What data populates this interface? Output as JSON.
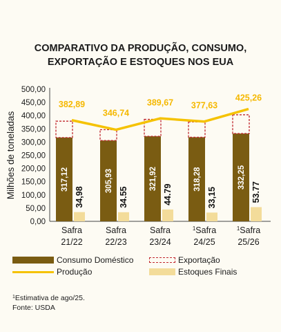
{
  "chart_data": {
    "type": "bar",
    "title_lines": [
      "COMPARATIVO DA PRODUÇÃO, CONSUMO,",
      "EXPORTAÇÃO E ESTOQUES NOS EUA"
    ],
    "ylabel": "Milhões de toneladas",
    "ylim": [
      0,
      500
    ],
    "yticks": [
      "0,00",
      "50,00",
      "100,00",
      "150,00",
      "200,00",
      "250,00",
      "300,00",
      "350,00",
      "400,00",
      "450,00",
      "500,00"
    ],
    "categories": [
      {
        "sup": "",
        "line1": "Safra",
        "line2": "21/22"
      },
      {
        "sup": "",
        "line1": "Safra",
        "line2": "22/23"
      },
      {
        "sup": "",
        "line1": "Safra",
        "line2": "23/24"
      },
      {
        "sup": "1",
        "line1": "Safra",
        "line2": "24/25"
      },
      {
        "sup": "1",
        "line1": "Safra",
        "line2": "25/26"
      }
    ],
    "series": [
      {
        "name": "Consumo Doméstico",
        "values": [
          317.12,
          305.93,
          321.92,
          318.28,
          332.25
        ],
        "labels": [
          "317,12",
          "305,93",
          "321,92",
          "318,28",
          "332,25"
        ],
        "color": "#7a5c12"
      },
      {
        "name": "Exportação",
        "values": [
          62,
          41,
          64,
          58,
          71
        ],
        "color": "#c0272d"
      },
      {
        "name": "Produção",
        "values": [
          382.89,
          346.74,
          389.67,
          377.63,
          425.26
        ],
        "labels": [
          "382,89",
          "346,74",
          "389,67",
          "377,63",
          "425,26"
        ],
        "color": "#f5c200"
      },
      {
        "name": "Estoques Finais",
        "values": [
          34.98,
          34.55,
          44.79,
          33.15,
          53.77
        ],
        "labels": [
          "34,98",
          "34.55",
          "44.79",
          "33,15",
          "53.77"
        ],
        "color": "#f3dc9a"
      }
    ],
    "grid": false
  },
  "footnote": "Estimativa de ago/25.",
  "footnote_mark": "1",
  "source": "Fonte: USDA"
}
